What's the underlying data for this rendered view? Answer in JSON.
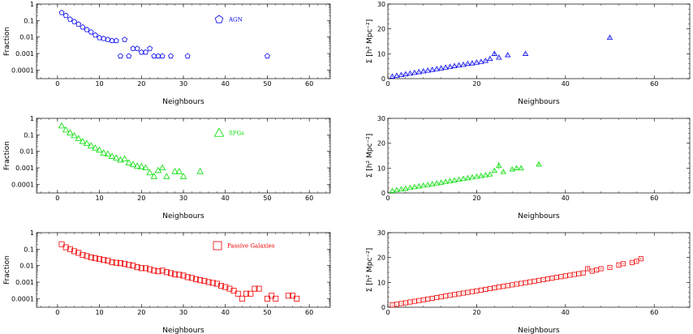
{
  "chart_data": [
    {
      "type": "scatter",
      "panel": "fraction",
      "xlabel": "Neighbours",
      "ylabel": "Fraction",
      "xlim": [
        -5,
        65
      ],
      "ylim": [
        3e-05,
        1
      ],
      "yscale": "log",
      "xticks": [
        0,
        10,
        20,
        30,
        40,
        50,
        60
      ],
      "yticks": [
        1,
        0.1,
        0.01,
        0.001,
        0.0001
      ],
      "ytick_labels": [
        "1",
        "0.1",
        "0.01",
        "0.001",
        "0.0001"
      ],
      "grid": false,
      "legend_position": "top-right",
      "series": [
        {
          "name": "AGN",
          "marker": "pentagon",
          "color": "#0000ee",
          "x": [
            1,
            2,
            3,
            4,
            5,
            6,
            7,
            8,
            9,
            10,
            11,
            12,
            13,
            14,
            15,
            16,
            17,
            18,
            19,
            20,
            21,
            22,
            23,
            24,
            25,
            27,
            31,
            50
          ],
          "y": [
            0.3,
            0.2,
            0.12,
            0.085,
            0.06,
            0.04,
            0.028,
            0.02,
            0.013,
            0.009,
            0.008,
            0.007,
            0.006,
            0.006,
            0.0007,
            0.007,
            0.0007,
            0.002,
            0.002,
            0.0012,
            0.0012,
            0.002,
            0.0007,
            0.0007,
            0.0007,
            0.0007,
            0.0007,
            0.0007
          ]
        }
      ]
    },
    {
      "type": "scatter",
      "panel": "surface-density",
      "xlabel": "Neighbours",
      "ylabel": "Σ [h² Mpc⁻²]",
      "xlim": [
        0,
        68
      ],
      "ylim": [
        0,
        30
      ],
      "xticks": [
        0,
        20,
        40,
        60
      ],
      "yticks": [
        0,
        10,
        20,
        30
      ],
      "grid": false,
      "series": [
        {
          "name": "AGN",
          "marker": "triangle",
          "color": "#0000ee",
          "x": [
            1,
            2,
            3,
            4,
            5,
            6,
            7,
            8,
            9,
            10,
            11,
            12,
            13,
            14,
            15,
            16,
            17,
            18,
            19,
            20,
            21,
            22,
            23,
            24,
            25,
            27,
            31,
            50
          ],
          "y": [
            0.9,
            1.2,
            1.5,
            1.8,
            2.1,
            2.4,
            2.7,
            3.0,
            3.3,
            3.6,
            3.9,
            4.2,
            4.5,
            4.8,
            5.1,
            5.4,
            5.6,
            6.0,
            6.2,
            6.5,
            6.8,
            7.2,
            8.0,
            10.0,
            8.5,
            9.5,
            10.0,
            16.5
          ],
          "yerr": [
            0.2,
            0.2,
            0.2,
            0.2,
            0.2,
            0.2,
            0.2,
            0.2,
            0.2,
            0.2,
            0.2,
            0.2,
            0.2,
            0.2,
            0.2,
            0.2,
            0.2,
            0.2,
            0.2,
            0.2,
            0.2,
            0.2,
            0.2,
            0.5,
            0.2,
            0.2,
            0.2,
            0.3
          ]
        }
      ]
    },
    {
      "type": "scatter",
      "panel": "fraction",
      "xlabel": "Neighbours",
      "ylabel": "Fraction",
      "xlim": [
        -5,
        65
      ],
      "ylim": [
        3e-05,
        1
      ],
      "yscale": "log",
      "xticks": [
        0,
        10,
        20,
        30,
        40,
        50,
        60
      ],
      "yticks": [
        1,
        0.1,
        0.01,
        0.001,
        0.0001
      ],
      "ytick_labels": [
        "1",
        "0.1",
        "0.01",
        "0.001",
        "0.0001"
      ],
      "grid": false,
      "legend_position": "top-right",
      "series": [
        {
          "name": "SFGs",
          "marker": "triangle",
          "color": "#00dd00",
          "x": [
            1,
            2,
            3,
            4,
            5,
            6,
            7,
            8,
            9,
            10,
            11,
            12,
            13,
            14,
            15,
            16,
            17,
            18,
            19,
            20,
            21,
            22,
            23,
            24,
            25,
            26,
            28,
            29,
            30,
            34
          ],
          "y": [
            0.35,
            0.2,
            0.13,
            0.09,
            0.06,
            0.04,
            0.03,
            0.022,
            0.016,
            0.012,
            0.008,
            0.007,
            0.005,
            0.004,
            0.003,
            0.0035,
            0.002,
            0.0016,
            0.0013,
            0.0012,
            0.001,
            0.0005,
            0.0003,
            0.0007,
            0.001,
            0.0003,
            0.0006,
            0.0006,
            0.0003,
            0.0006
          ]
        }
      ]
    },
    {
      "type": "scatter",
      "panel": "surface-density",
      "xlabel": "Neighbours",
      "ylabel": "Σ [h² Mpc⁻²]",
      "xlim": [
        0,
        68
      ],
      "ylim": [
        0,
        30
      ],
      "xticks": [
        0,
        20,
        40,
        60
      ],
      "yticks": [
        0,
        10,
        20,
        30
      ],
      "grid": false,
      "series": [
        {
          "name": "SFGs",
          "marker": "triangle",
          "color": "#00dd00",
          "x": [
            1,
            2,
            3,
            4,
            5,
            6,
            7,
            8,
            9,
            10,
            11,
            12,
            13,
            14,
            15,
            16,
            17,
            18,
            19,
            20,
            21,
            22,
            23,
            24,
            25,
            26,
            28,
            29,
            30,
            34
          ],
          "y": [
            0.9,
            1.2,
            1.5,
            1.8,
            2.1,
            2.4,
            2.7,
            3.0,
            3.3,
            3.6,
            3.9,
            4.2,
            4.5,
            4.8,
            5.1,
            5.4,
            5.7,
            6.0,
            6.3,
            6.6,
            6.9,
            7.2,
            7.5,
            9.0,
            11.0,
            8.5,
            9.5,
            10.0,
            10.0,
            11.5
          ],
          "yerr": [
            0.2,
            0.2,
            0.2,
            0.2,
            0.2,
            0.2,
            0.2,
            0.2,
            0.2,
            0.2,
            0.2,
            0.2,
            0.2,
            0.2,
            0.2,
            0.2,
            0.2,
            0.2,
            0.2,
            0.2,
            0.2,
            0.2,
            0.2,
            0.3,
            1.5,
            0.3,
            0.3,
            0.3,
            0.3,
            0.4
          ]
        }
      ]
    },
    {
      "type": "scatter",
      "panel": "fraction",
      "xlabel": "Neighbours",
      "ylabel": "Fraction",
      "xlim": [
        -5,
        65
      ],
      "ylim": [
        3e-05,
        1
      ],
      "yscale": "log",
      "xticks": [
        0,
        10,
        20,
        30,
        40,
        50,
        60
      ],
      "yticks": [
        1,
        0.1,
        0.01,
        0.001,
        0.0001
      ],
      "ytick_labels": [
        "1",
        "0.1",
        "0.01",
        "0.001",
        "0.0001"
      ],
      "grid": false,
      "legend_position": "top-right",
      "series": [
        {
          "name": "Passive Galaxies",
          "marker": "square",
          "color": "#ee0000",
          "x": [
            1,
            2,
            3,
            4,
            5,
            6,
            7,
            8,
            9,
            10,
            11,
            12,
            13,
            14,
            15,
            16,
            17,
            18,
            19,
            20,
            21,
            22,
            23,
            24,
            25,
            26,
            27,
            28,
            29,
            30,
            31,
            32,
            33,
            34,
            35,
            36,
            37,
            38,
            39,
            40,
            41,
            42,
            43,
            44,
            45,
            46,
            47,
            48,
            50,
            51,
            52,
            55,
            56,
            57
          ],
          "y": [
            0.2,
            0.13,
            0.1,
            0.075,
            0.06,
            0.045,
            0.038,
            0.032,
            0.028,
            0.025,
            0.022,
            0.02,
            0.016,
            0.015,
            0.014,
            0.013,
            0.011,
            0.01,
            0.008,
            0.007,
            0.007,
            0.006,
            0.005,
            0.0045,
            0.005,
            0.004,
            0.0035,
            0.003,
            0.0028,
            0.0025,
            0.002,
            0.0018,
            0.0015,
            0.0013,
            0.0012,
            0.001,
            0.0009,
            0.0008,
            0.0006,
            0.0005,
            0.0004,
            0.0003,
            0.0002,
            0.0001,
            0.0002,
            0.0002,
            0.0004,
            0.0004,
            0.0001,
            0.00015,
            0.0001,
            0.00015,
            0.00015,
            0.0001
          ]
        }
      ]
    },
    {
      "type": "scatter",
      "panel": "surface-density",
      "xlabel": "Neighbours",
      "ylabel": "Σ [h² Mpc⁻²]",
      "xlim": [
        0,
        68
      ],
      "ylim": [
        0,
        30
      ],
      "xticks": [
        0,
        20,
        40,
        60
      ],
      "yticks": [
        0,
        10,
        20,
        30
      ],
      "grid": false,
      "series": [
        {
          "name": "Passive Galaxies",
          "marker": "square",
          "color": "#ee0000",
          "x": [
            1,
            2,
            3,
            4,
            5,
            6,
            7,
            8,
            9,
            10,
            11,
            12,
            13,
            14,
            15,
            16,
            17,
            18,
            19,
            20,
            21,
            22,
            23,
            24,
            25,
            26,
            27,
            28,
            29,
            30,
            31,
            32,
            33,
            34,
            35,
            36,
            37,
            38,
            39,
            40,
            41,
            42,
            43,
            44,
            45,
            46,
            47,
            48,
            50,
            52,
            53,
            55,
            56,
            57
          ],
          "y": [
            0.9,
            1.2,
            1.5,
            1.8,
            2.1,
            2.4,
            2.7,
            3.0,
            3.3,
            3.6,
            3.9,
            4.2,
            4.5,
            4.8,
            5.1,
            5.4,
            5.7,
            6.0,
            6.3,
            6.6,
            6.9,
            7.2,
            7.5,
            7.8,
            8.1,
            8.4,
            8.7,
            9.0,
            9.3,
            9.6,
            9.9,
            10.2,
            10.5,
            10.8,
            11.1,
            11.4,
            11.7,
            12.0,
            12.3,
            12.6,
            12.9,
            13.2,
            13.5,
            13.8,
            15.5,
            14.5,
            15.0,
            15.5,
            16.0,
            17.0,
            17.5,
            18.0,
            18.5,
            19.5
          ],
          "yerr": [
            0.15,
            0.15,
            0.15,
            0.15,
            0.15,
            0.15,
            0.15,
            0.15,
            0.15,
            0.15,
            0.15,
            0.15,
            0.15,
            0.15,
            0.15,
            0.15,
            0.15,
            0.15,
            0.15,
            0.15,
            0.15,
            0.15,
            0.15,
            0.15,
            0.15,
            0.15,
            0.15,
            0.15,
            0.15,
            0.15,
            0.15,
            0.15,
            0.15,
            0.15,
            0.15,
            0.15,
            0.15,
            0.15,
            0.15,
            0.15,
            0.15,
            0.15,
            0.15,
            0.15,
            0.6,
            0.3,
            0.3,
            0.3,
            0.3,
            0.3,
            0.3,
            0.3,
            0.3,
            0.4
          ]
        }
      ]
    }
  ]
}
